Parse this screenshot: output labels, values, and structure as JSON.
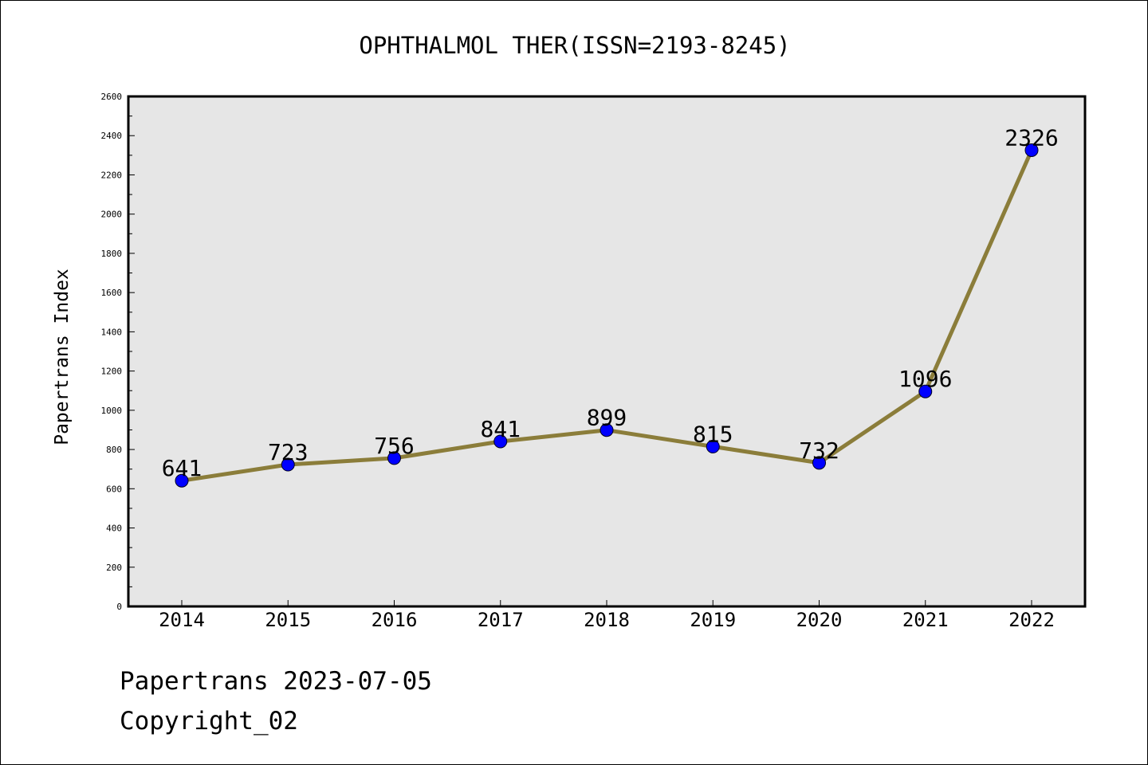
{
  "chart_data": {
    "type": "line",
    "title": "OPHTHALMOL THER(ISSN=2193-8245)",
    "xlabel": "",
    "ylabel": "Papertrans Index",
    "categories": [
      "2014",
      "2015",
      "2016",
      "2017",
      "2018",
      "2019",
      "2020",
      "2021",
      "2022"
    ],
    "series": [
      {
        "values": [
          641,
          723,
          756,
          841,
          899,
          815,
          732,
          1096,
          2326
        ]
      }
    ],
    "data_labels": [
      "641",
      "723",
      "756",
      "841",
      "899",
      "815",
      "732",
      "1096",
      "2326"
    ],
    "ylim": [
      0,
      2600
    ],
    "yticks": [
      "0",
      "200",
      "400",
      "600",
      "800",
      "1000",
      "1200",
      "1400",
      "1600",
      "1800",
      "2000",
      "2200",
      "2400",
      "2600"
    ],
    "grid": false,
    "colors": {
      "line": "#8b7d3a",
      "marker": "#0000ff",
      "plot_background": "#e6e6e6"
    }
  },
  "footer": {
    "line1": "Papertrans 2023-07-05",
    "line2": "Copyright_02"
  }
}
